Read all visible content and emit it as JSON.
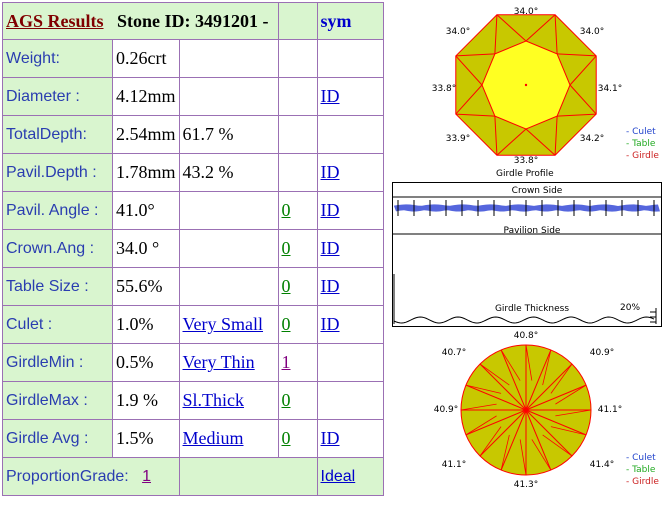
{
  "header": {
    "title": "AGS  Results",
    "stone_id_label": "Stone ID:  3491201 -",
    "sym_label": "sym"
  },
  "rows": [
    {
      "label": "Weight:",
      "value": "0.26crt",
      "pct": "",
      "code": "",
      "code_color": "",
      "extra": "",
      "link": ""
    },
    {
      "label": "Diameter :",
      "value": "4.12mm",
      "pct": "",
      "code": "",
      "code_color": "",
      "extra": "",
      "link": "ID"
    },
    {
      "label": "TotalDepth:",
      "value": "2.54mm",
      "pct": "61.7 %",
      "code": "",
      "code_color": "",
      "extra": "",
      "link": ""
    },
    {
      "label": "Pavil.Depth :",
      "value": "1.78mm",
      "pct": "43.2 %",
      "code": "",
      "code_color": "",
      "extra": "",
      "link": "ID"
    },
    {
      "label": "Pavil. Angle :",
      "value": "41.0°",
      "pct": "",
      "code": "0",
      "code_color": "g",
      "extra": "",
      "link": "ID "
    },
    {
      "label": "Crown.Ang :",
      "value": "34.0 °",
      "pct": "",
      "code": "0",
      "code_color": "g",
      "extra": "",
      "link": "ID"
    },
    {
      "label": "Table Size :",
      "value": "55.6%",
      "pct": "",
      "code": "0",
      "code_color": "g",
      "extra": "",
      "link": "ID "
    },
    {
      "label": "Culet :",
      "value": "1.0%",
      "pct": "",
      "code": "0",
      "code_color": "g",
      "extra": "Very Small",
      "link": "ID"
    },
    {
      "label": "GirdleMin :",
      "value": "0.5%",
      "pct": "",
      "code": "1",
      "code_color": "v",
      "extra": "Very Thin",
      "link": ""
    },
    {
      "label": "GirdleMax :",
      "value": "1.9 %",
      "pct": "",
      "code": "0",
      "code_color": "g",
      "extra": "Sl.Thick ",
      "link": ""
    },
    {
      "label": "Girdle Avg :",
      "value": "1.5%",
      "pct": "",
      "code": "0 ",
      "code_color": "g",
      "extra": "Medium ",
      "link": "ID "
    }
  ],
  "proportion": {
    "label": "ProportionGrade:",
    "value": "1",
    "grade": "Ideal "
  },
  "crown_view": {
    "angles": {
      "top": "34.0°",
      "top_left": "34.0°",
      "top_right": "34.0°",
      "left": "33.8°",
      "right": "34.1°",
      "bottom_left": "33.9°",
      "bottom_right": "34.2°",
      "bottom": "33.8°"
    },
    "caption": "Girdle Profile",
    "legend": {
      "culet": "- Culet",
      "table": "- Table",
      "girdle": "- Girdle"
    },
    "colors": {
      "fill": "#c8c800",
      "table": "#ffff22",
      "lines": "#ff0000"
    }
  },
  "profile": {
    "crown_label": "Crown Side",
    "pavilion_label": "Pavilion Side",
    "thickness_label": "Girdle Thickness",
    "percent": "20%"
  },
  "pavilion_view": {
    "angles": {
      "top": "40.8°",
      "top_left": "40.7°",
      "top_right": "40.9°",
      "left": "40.9°",
      "right": "41.1°",
      "bottom_left": "41.1°",
      "bottom_right": "41.4°",
      "bottom": "41.3°"
    },
    "legend": {
      "culet": "- Culet",
      "table": "- Table",
      "girdle": "- Girdle"
    }
  }
}
